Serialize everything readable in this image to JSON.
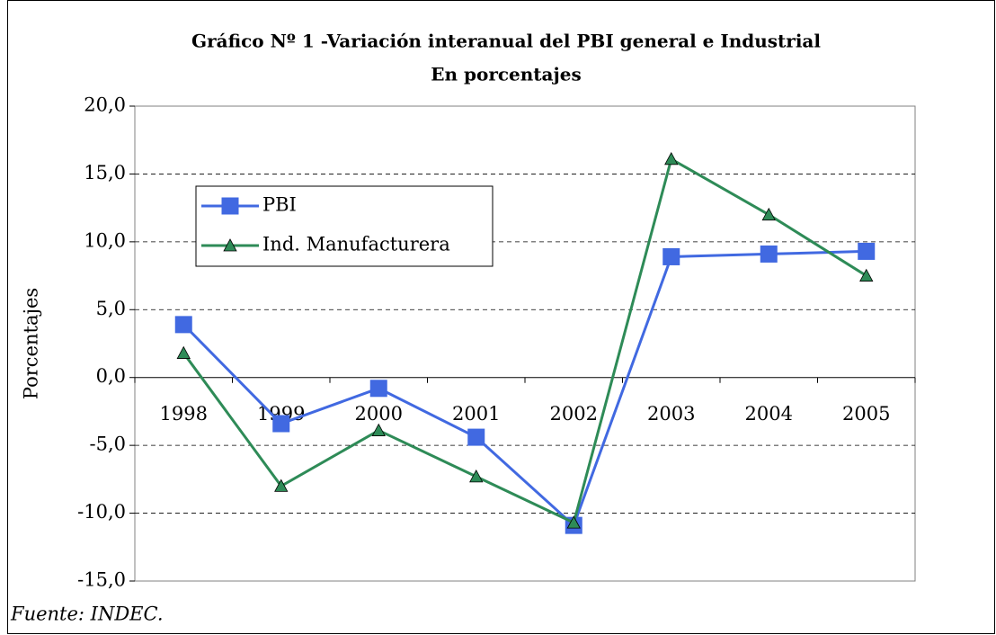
{
  "chart_data": {
    "type": "line",
    "title": "Gráfico Nº 1 -Variación interanual del PBI general e Industrial",
    "subtitle": "En porcentajes",
    "y_label": "Porcentajes",
    "source": "Fuente: INDEC.",
    "categories": [
      "1998",
      "1999",
      "2000",
      "2001",
      "2002",
      "2003",
      "2004",
      "2005"
    ],
    "series": [
      {
        "name": "PBI",
        "color": "#4169e1",
        "marker": "square",
        "values": [
          3.9,
          -3.4,
          -0.8,
          -4.4,
          -10.9,
          8.9,
          9.1,
          9.3
        ]
      },
      {
        "name": "Ind. Manufacturera",
        "color": "#2e8b57",
        "marker": "triangle",
        "values": [
          1.8,
          -8.0,
          -3.9,
          -7.3,
          -10.7,
          16.1,
          12.0,
          7.5
        ]
      }
    ],
    "ylim": [
      -15,
      20
    ],
    "yticks": [
      {
        "value": -15,
        "label": "-15,0"
      },
      {
        "value": -10,
        "label": "-10,0"
      },
      {
        "value": -5,
        "label": "-5,0"
      },
      {
        "value": 0,
        "label": "0,0"
      },
      {
        "value": 5,
        "label": "5,0"
      },
      {
        "value": 10,
        "label": "10,0"
      },
      {
        "value": 15,
        "label": "15,0"
      },
      {
        "value": 20,
        "label": "20,0"
      }
    ],
    "grid": true,
    "legend": "upper-left"
  }
}
